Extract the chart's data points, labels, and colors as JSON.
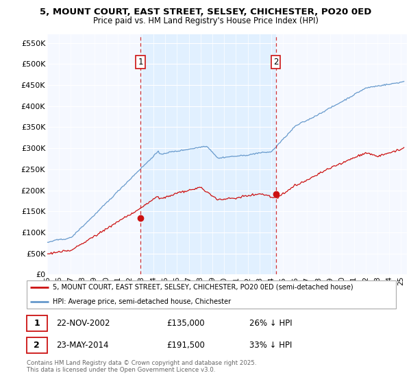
{
  "title": "5, MOUNT COURT, EAST STREET, SELSEY, CHICHESTER, PO20 0ED",
  "subtitle": "Price paid vs. HM Land Registry's House Price Index (HPI)",
  "ylabel_ticks": [
    "£0",
    "£50K",
    "£100K",
    "£150K",
    "£200K",
    "£250K",
    "£300K",
    "£350K",
    "£400K",
    "£450K",
    "£500K",
    "£550K"
  ],
  "ytick_values": [
    0,
    50000,
    100000,
    150000,
    200000,
    250000,
    300000,
    350000,
    400000,
    450000,
    500000,
    550000
  ],
  "ylim": [
    0,
    570000
  ],
  "xlim_start": 1995.0,
  "xlim_end": 2025.5,
  "sale1_date_x": 2002.9,
  "sale1_price": 135000,
  "sale1_label": "22-NOV-2002",
  "sale1_amount": "£135,000",
  "sale1_pct": "26% ↓ HPI",
  "sale2_date_x": 2014.38,
  "sale2_price": 191500,
  "sale2_label": "23-MAY-2014",
  "sale2_amount": "£191,500",
  "sale2_pct": "33% ↓ HPI",
  "hpi_color": "#6699cc",
  "price_color": "#cc1111",
  "dashed_color": "#cc1111",
  "shade_color": "#ddeeff",
  "legend_line1": "5, MOUNT COURT, EAST STREET, SELSEY, CHICHESTER, PO20 0ED (semi-detached house)",
  "legend_line2": "HPI: Average price, semi-detached house, Chichester",
  "footnote": "Contains HM Land Registry data © Crown copyright and database right 2025.\nThis data is licensed under the Open Government Licence v3.0.",
  "bg_color": "#ffffff",
  "plot_bg": "#f5f8ff"
}
